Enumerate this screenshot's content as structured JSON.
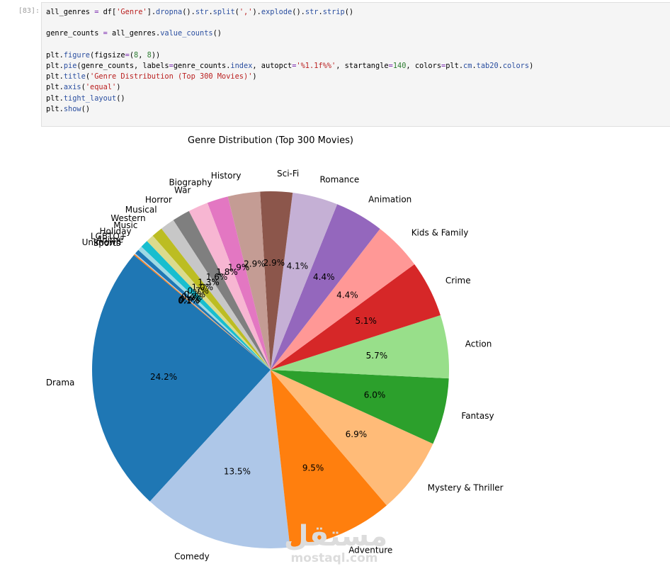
{
  "cell": {
    "prompt": "[83]:",
    "code_lines": [
      "all_genres = df['Genre'].dropna().str.split(',').explode().str.strip()",
      "",
      "genre_counts = all_genres.value_counts()",
      "",
      "plt.figure(figsize=(8, 8))",
      "plt.pie(genre_counts, labels=genre_counts.index, autopct='%1.1f%%', startangle=140, colors=plt.cm.tab20.colors)",
      "plt.title('Genre Distribution (Top 300 Movies)')",
      "plt.axis('equal')",
      "plt.tight_layout()",
      "plt.show()"
    ]
  },
  "watermark": {
    "arabic": "مستقل",
    "latin": "mostaql.com"
  },
  "chart_data": {
    "type": "pie",
    "title": "Genre Distribution (Top 300 Movies)",
    "startangle": 140,
    "direction": "counterclockwise",
    "slices": [
      {
        "label": "Drama",
        "value": 24.2,
        "pct": "24.2%",
        "color": "#1f77b4"
      },
      {
        "label": "Comedy",
        "value": 13.5,
        "pct": "13.5%",
        "color": "#aec7e8"
      },
      {
        "label": "Adventure",
        "value": 9.5,
        "pct": "9.5%",
        "color": "#ff7f0e"
      },
      {
        "label": "Mystery & Thriller",
        "value": 6.9,
        "pct": "6.9%",
        "color": "#ffbb78"
      },
      {
        "label": "Fantasy",
        "value": 6.0,
        "pct": "6.0%",
        "color": "#2ca02c"
      },
      {
        "label": "Action",
        "value": 5.7,
        "pct": "5.7%",
        "color": "#98df8a"
      },
      {
        "label": "Crime",
        "value": 5.1,
        "pct": "5.1%",
        "color": "#d62728"
      },
      {
        "label": "Kids & Family",
        "value": 4.4,
        "pct": "4.4%",
        "color": "#ff9896"
      },
      {
        "label": "Animation",
        "value": 4.4,
        "pct": "4.4%",
        "color": "#9467bd"
      },
      {
        "label": "Romance",
        "value": 4.1,
        "pct": "4.1%",
        "color": "#c5b0d5"
      },
      {
        "label": "Sci-Fi",
        "value": 2.9,
        "pct": "2.9%",
        "color": "#8c564b"
      },
      {
        "label": "History",
        "value": 2.9,
        "pct": "2.9%",
        "color": "#c49c94"
      },
      {
        "label": "Biography",
        "value": 1.9,
        "pct": "1.9%",
        "color": "#e377c2"
      },
      {
        "label": "War",
        "value": 1.8,
        "pct": "1.8%",
        "color": "#f7b6d2"
      },
      {
        "label": "Horror",
        "value": 1.6,
        "pct": "1.6%",
        "color": "#7f7f7f"
      },
      {
        "label": "Musical",
        "value": 1.3,
        "pct": "1.3%",
        "color": "#c7c7c7"
      },
      {
        "label": "Western",
        "value": 1.0,
        "pct": "1.0%",
        "color": "#bcbd22"
      },
      {
        "label": "Music",
        "value": 0.7,
        "pct": "0.7%",
        "color": "#dbdb8d"
      },
      {
        "label": "Holiday",
        "value": 0.7,
        "pct": "0.7%",
        "color": "#17becf"
      },
      {
        "label": "LGBTQ+",
        "value": 0.4,
        "pct": "0.4%",
        "color": "#9edae5"
      },
      {
        "label": "Anime",
        "value": 0.4,
        "pct": "0.4%",
        "color": "#1f77b4"
      },
      {
        "label": "Unknown",
        "value": 0.1,
        "pct": "0.1%",
        "color": "#aec7e8"
      },
      {
        "label": "Sports",
        "value": 0.1,
        "pct": "0.1%",
        "color": "#ff7f0e"
      }
    ]
  }
}
